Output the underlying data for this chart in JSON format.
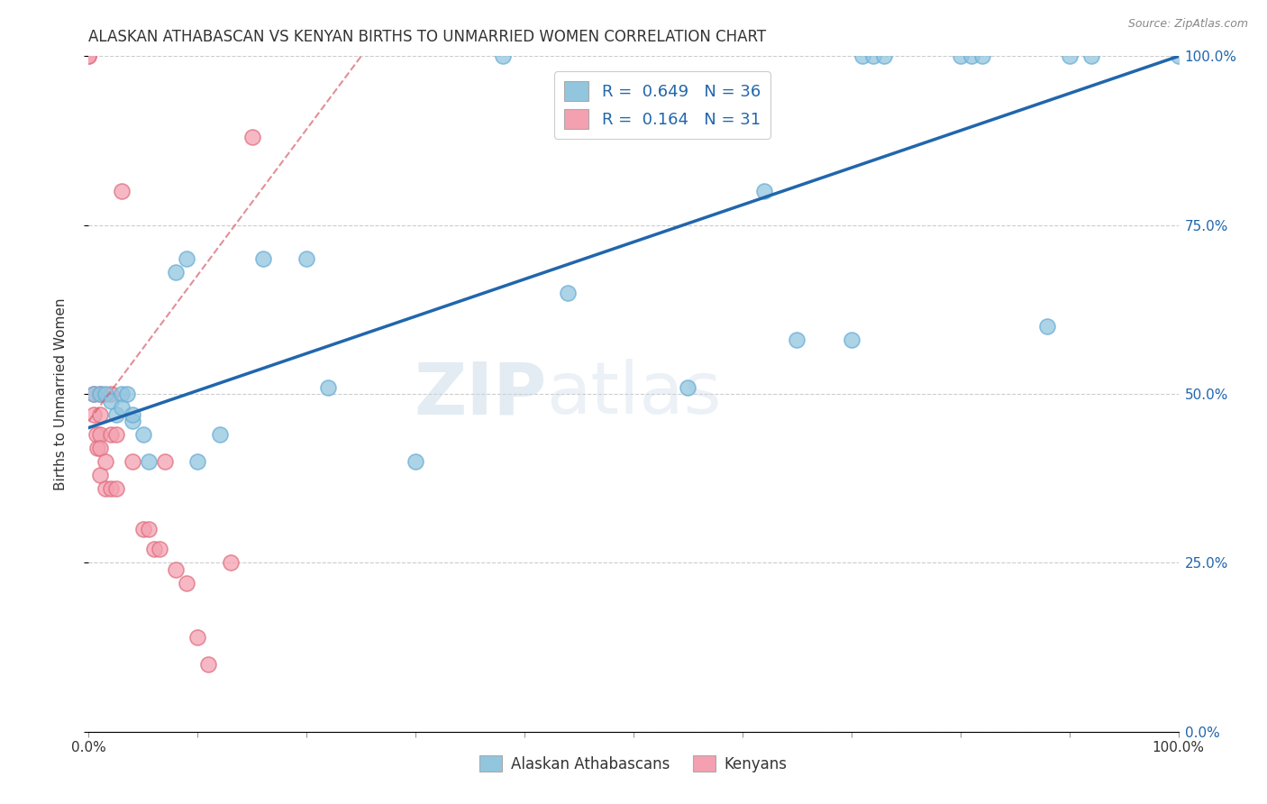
{
  "title": "ALASKAN ATHABASCAN VS KENYAN BIRTHS TO UNMARRIED WOMEN CORRELATION CHART",
  "source": "Source: ZipAtlas.com",
  "ylabel": "Births to Unmarried Women",
  "ytick_labels": [
    "0.0%",
    "25.0%",
    "50.0%",
    "75.0%",
    "100.0%"
  ],
  "ytick_values": [
    0.0,
    0.25,
    0.5,
    0.75,
    1.0
  ],
  "xtick_labels": [
    "0.0%",
    "",
    "",
    "",
    "",
    "",
    "",
    "",
    "",
    "",
    "100.0%"
  ],
  "xtick_values": [
    0.0,
    0.1,
    0.2,
    0.3,
    0.4,
    0.5,
    0.6,
    0.7,
    0.8,
    0.9,
    1.0
  ],
  "legend_blue_label": "R =  0.649   N = 36",
  "legend_pink_label": "R =  0.164   N = 31",
  "legend_blue_bottom": "Alaskan Athabascans",
  "legend_pink_bottom": "Kenyans",
  "blue_color": "#92c5de",
  "blue_edge_color": "#6aaed6",
  "pink_color": "#f4a0b0",
  "pink_edge_color": "#e07080",
  "blue_line_color": "#2166ac",
  "pink_line_color": "#d6606d",
  "watermark_zip": "ZIP",
  "watermark_atlas": "atlas",
  "blue_x": [
    0.005,
    0.01,
    0.015,
    0.02,
    0.025,
    0.03,
    0.03,
    0.035,
    0.04,
    0.04,
    0.05,
    0.055,
    0.08,
    0.09,
    0.1,
    0.12,
    0.16,
    0.2,
    0.22,
    0.3,
    0.38,
    0.44,
    0.55,
    0.62,
    0.65,
    0.7,
    0.71,
    0.72,
    0.73,
    0.8,
    0.81,
    0.82,
    0.88,
    0.9,
    0.92,
    1.0
  ],
  "blue_y": [
    0.5,
    0.5,
    0.5,
    0.49,
    0.47,
    0.5,
    0.48,
    0.5,
    0.46,
    0.47,
    0.44,
    0.4,
    0.68,
    0.7,
    0.4,
    0.44,
    0.7,
    0.7,
    0.51,
    0.4,
    1.0,
    0.65,
    0.51,
    0.8,
    0.58,
    0.58,
    1.0,
    1.0,
    1.0,
    1.0,
    1.0,
    1.0,
    0.6,
    1.0,
    1.0,
    1.0
  ],
  "pink_x": [
    0.0,
    0.0,
    0.005,
    0.005,
    0.007,
    0.008,
    0.01,
    0.01,
    0.01,
    0.01,
    0.01,
    0.015,
    0.015,
    0.02,
    0.02,
    0.02,
    0.025,
    0.025,
    0.03,
    0.04,
    0.05,
    0.055,
    0.06,
    0.065,
    0.07,
    0.08,
    0.09,
    0.1,
    0.11,
    0.13,
    0.15
  ],
  "pink_y": [
    1.0,
    1.0,
    0.5,
    0.47,
    0.44,
    0.42,
    0.5,
    0.47,
    0.44,
    0.42,
    0.38,
    0.4,
    0.36,
    0.5,
    0.44,
    0.36,
    0.44,
    0.36,
    0.8,
    0.4,
    0.3,
    0.3,
    0.27,
    0.27,
    0.4,
    0.24,
    0.22,
    0.14,
    0.1,
    0.25,
    0.88
  ],
  "blue_R": 0.649,
  "blue_N": 36,
  "pink_R": 0.164,
  "pink_N": 31,
  "blue_line_x0": 0.0,
  "blue_line_y0": 0.45,
  "blue_line_x1": 1.0,
  "blue_line_y1": 1.0,
  "pink_line_x0": 0.0,
  "pink_line_y0": 0.46,
  "pink_line_x1": 0.25,
  "pink_line_y1": 1.0
}
